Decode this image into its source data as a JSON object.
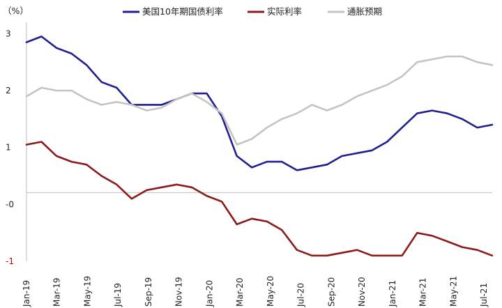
{
  "chart_data": {
    "type": "line",
    "unit_label": "（%）",
    "ylim": [
      -1,
      3.2
    ],
    "y_ticks": [
      {
        "value": 3,
        "label": "3"
      },
      {
        "value": 2,
        "label": "2"
      },
      {
        "value": 1,
        "label": "1"
      },
      {
        "value": 0,
        "label": "-0"
      },
      {
        "value": -1,
        "label": "-1"
      }
    ],
    "y_tick_colors": [
      "#222222",
      "#222222",
      "#222222",
      "#222222",
      "#c00000"
    ],
    "x_ticks": [
      "Jan-19",
      "Mar-19",
      "May-19",
      "Jul-19",
      "Sep-19",
      "Nov-19",
      "Jan-20",
      "Mar-20",
      "May-20",
      "Jul-20",
      "Sep-20",
      "Nov-20",
      "Jan-21",
      "Mar-21",
      "May-21",
      "Jul-21"
    ],
    "x": [
      "2019-01",
      "2019-02",
      "2019-03",
      "2019-04",
      "2019-05",
      "2019-06",
      "2019-07",
      "2019-08",
      "2019-09",
      "2019-10",
      "2019-11",
      "2019-12",
      "2020-01",
      "2020-02",
      "2020-03",
      "2020-04",
      "2020-05",
      "2020-06",
      "2020-07",
      "2020-08",
      "2020-09",
      "2020-10",
      "2020-11",
      "2020-12",
      "2021-01",
      "2021-02",
      "2021-03",
      "2021-04",
      "2021-05",
      "2021-06",
      "2021-07",
      "2021-08"
    ],
    "series": [
      {
        "name": "美国10年期国债利率",
        "color": "#1f1f8f",
        "values": [
          2.85,
          2.95,
          2.75,
          2.65,
          2.45,
          2.15,
          2.05,
          1.75,
          1.75,
          1.75,
          1.85,
          1.95,
          1.95,
          1.55,
          0.85,
          0.65,
          0.75,
          0.75,
          0.6,
          0.65,
          0.7,
          0.85,
          0.9,
          0.95,
          1.1,
          1.35,
          1.6,
          1.65,
          1.6,
          1.5,
          1.35,
          1.4
        ]
      },
      {
        "name": "实际利率",
        "color": "#8b1a1a",
        "values": [
          1.05,
          1.1,
          0.85,
          0.75,
          0.7,
          0.5,
          0.35,
          0.1,
          0.25,
          0.3,
          0.35,
          0.3,
          0.15,
          0.05,
          -0.35,
          -0.25,
          -0.3,
          -0.45,
          -0.8,
          -0.9,
          -0.9,
          -0.85,
          -0.8,
          -0.9,
          -0.9,
          -0.9,
          -0.5,
          -0.55,
          -0.65,
          -0.75,
          -0.8,
          -0.9
        ]
      },
      {
        "name": "通胀预期",
        "color": "#c4c4c4",
        "values": [
          1.9,
          2.05,
          2.0,
          2.0,
          1.85,
          1.75,
          1.8,
          1.75,
          1.65,
          1.7,
          1.85,
          1.95,
          1.8,
          1.6,
          1.05,
          1.15,
          1.35,
          1.5,
          1.6,
          1.75,
          1.65,
          1.75,
          1.9,
          2.0,
          2.1,
          2.25,
          2.5,
          2.55,
          2.6,
          2.6,
          2.5,
          2.45
        ]
      }
    ],
    "legend_position": "top-center",
    "grid": false
  }
}
